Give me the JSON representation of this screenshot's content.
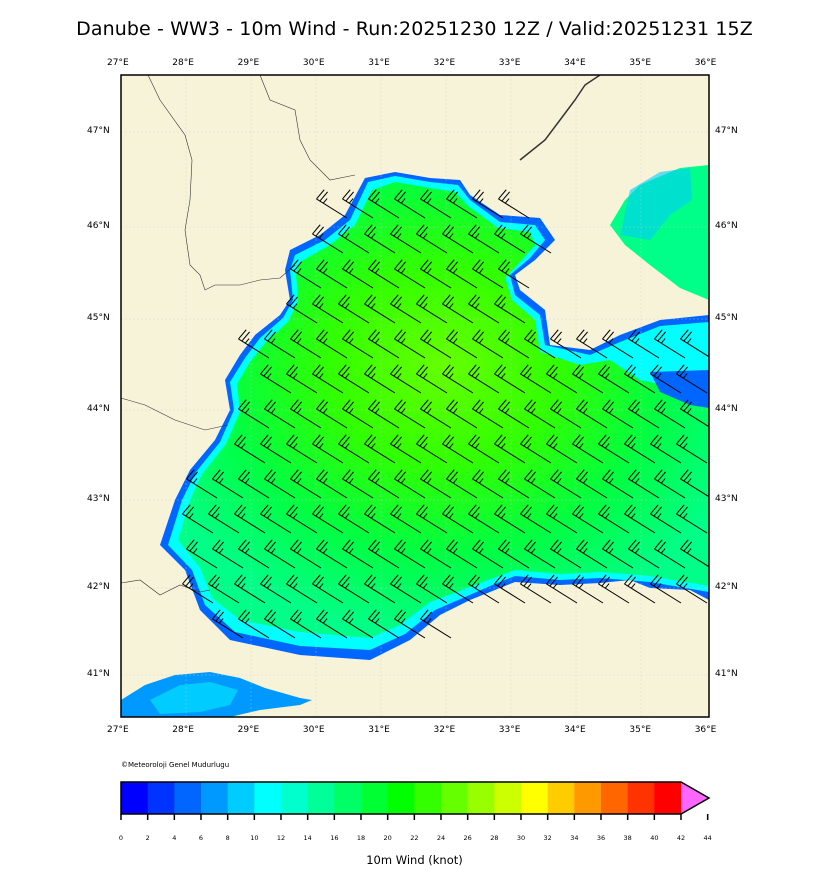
{
  "title": "Danube - WW3 - 10m Wind - Run:20251230 12Z / Valid:20251231 15Z",
  "map": {
    "extent": {
      "lon_min": 27,
      "lon_max": 36,
      "lat_min": 40.55,
      "lat_max": 47.6
    },
    "lon_labels": [
      "27°E",
      "28°E",
      "29°E",
      "30°E",
      "31°E",
      "32°E",
      "33°E",
      "34°E",
      "35°E",
      "36°E"
    ],
    "lat_labels": [
      "47°N",
      "46°N",
      "45°N",
      "44°N",
      "43°N",
      "42°N",
      "41°N"
    ],
    "land_color": "#f7f3d9",
    "grid": true,
    "region": "Black Sea (western basin)",
    "wind_direction_general": "NW",
    "typical_speed_range_knots": "15-25"
  },
  "copyright": "©Meteoroloji Genel Mudurlugu",
  "colorbar": {
    "label": "10m Wind (knot)",
    "ticks": [
      "0",
      "2",
      "4",
      "6",
      "8",
      "10",
      "12",
      "14",
      "16",
      "18",
      "20",
      "22",
      "24",
      "26",
      "28",
      "30",
      "32",
      "34",
      "36",
      "38",
      "40",
      "42",
      "44"
    ],
    "colors": [
      "#0000ff",
      "#0033ff",
      "#0066ff",
      "#0099ff",
      "#00ccff",
      "#00ffff",
      "#00ffcc",
      "#00ff99",
      "#00ff66",
      "#00ff33",
      "#00ff00",
      "#33ff00",
      "#66ff00",
      "#99ff00",
      "#ccff00",
      "#ffff00",
      "#ffcc00",
      "#ff9900",
      "#ff6600",
      "#ff3300",
      "#ff0000",
      "#ff66ff"
    ],
    "extend": "max"
  }
}
